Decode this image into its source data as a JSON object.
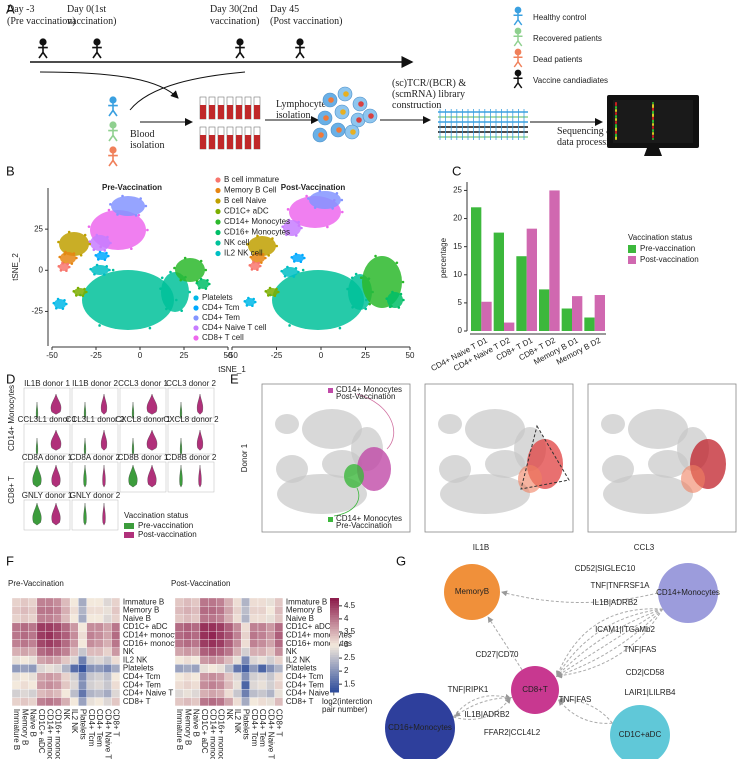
{
  "panel_labels": [
    "A",
    "B",
    "C",
    "D",
    "E",
    "F",
    "G"
  ],
  "panel_a": {
    "timeline": [
      {
        "lines": [
          "Day -3",
          "(Pre vaccination)"
        ]
      },
      {
        "lines": [
          "Day 0(1st",
          "vaccination)"
        ]
      },
      {
        "lines": [
          "Day 30(2nd",
          "vaccination)"
        ]
      },
      {
        "lines": [
          "Day 45",
          "(Post vaccination)"
        ]
      }
    ],
    "legend": [
      {
        "name": "Healthy control",
        "color": "#3aa0e0"
      },
      {
        "name": "Recovered patients",
        "color": "#8fd08f"
      },
      {
        "name": "Dead patients",
        "color": "#f0805a"
      },
      {
        "name": "Vaccine candiadiates",
        "color": "#111111"
      }
    ],
    "steps": [
      {
        "lines": [
          "Blood",
          "isolation"
        ]
      },
      {
        "lines": [
          "Lymphocyte",
          "isolation"
        ]
      },
      {
        "lines": [
          "(sc)TCR/(BCR) &",
          "(scmRNA) library",
          "construction"
        ]
      },
      {
        "lines": [
          "Sequencing &",
          "data processing"
        ]
      }
    ]
  },
  "panel_b": {
    "titles": [
      "Pre-Vaccination",
      "Post-Vaccination"
    ],
    "x_label": "tSNE_1",
    "y_label": "tSNE_2",
    "xlim": [
      -50,
      50
    ],
    "ylim": [
      -46,
      50
    ],
    "xticks": [
      -50,
      -25,
      0,
      25,
      50
    ],
    "yticks": [
      -25,
      0,
      25
    ],
    "clusters": [
      {
        "name": "B cell immature",
        "color": "#f8766d"
      },
      {
        "name": "Memory B Cell",
        "color": "#e68613"
      },
      {
        "name": "B cell Naive",
        "color": "#bfa000"
      },
      {
        "name": "CD1C+ aDC",
        "color": "#7cae00"
      },
      {
        "name": "CD14+ Monocytes",
        "color": "#2cb82c"
      },
      {
        "name": "CD16+ Monocytes",
        "color": "#00be67"
      },
      {
        "name": "NK cell",
        "color": "#00c19a"
      },
      {
        "name": "IL2 NK cell",
        "color": "#00bfc4"
      },
      {
        "name": "Platelets",
        "color": "#00b8e7"
      },
      {
        "name": "CD4+ Tcm",
        "color": "#00a9ff"
      },
      {
        "name": "CD4+ Tem",
        "color": "#8494ff"
      },
      {
        "name": "CD4+ Naive T cell",
        "color": "#c77cff"
      },
      {
        "name": "CD8+ T cell",
        "color": "#ed68ed"
      }
    ]
  },
  "chart_data": [
    {
      "type": "bar",
      "y_label": "percentage",
      "categories": [
        "CD4+ Naive T D1",
        "CD4+ Naive T D2",
        "CD8+ T D1",
        "CD8+ T D2",
        "Memory B D1",
        "Memory B D2"
      ],
      "legend_title": "Vaccination status",
      "series": [
        {
          "name": "Pre-vaccination",
          "color": "#3cb83c",
          "values": [
            22,
            17.5,
            13.3,
            7.4,
            4,
            2.4
          ]
        },
        {
          "name": "Post-vaccination",
          "color": "#d068b0",
          "values": [
            5.2,
            1.5,
            18.2,
            25,
            6.2,
            6.4
          ]
        }
      ],
      "ylim": [
        0,
        26.5
      ],
      "yticks": [
        0,
        5,
        10,
        15,
        20,
        25
      ]
    },
    {
      "type": "heatmap",
      "title": "Pre-Vaccination",
      "labels": [
        "Immature B",
        "Memory B",
        "Naive B",
        "CD1C+ aDC",
        "CD14+ monocytes",
        "CD16+ monocytes",
        "NK",
        "IL2 NK",
        "Platelets",
        "CD4+ Tcm",
        "CD4+ Tem",
        "CD4+ Naive T",
        "CD8+ T"
      ],
      "values": [
        [
          3.2,
          3.3,
          3.2,
          3.9,
          3.9,
          3.8,
          3.4,
          3.0,
          2.3,
          3.0,
          3.0,
          2.8,
          3.2
        ],
        [
          3.3,
          3.4,
          3.3,
          4.0,
          4.0,
          3.9,
          3.5,
          3.1,
          2.4,
          3.1,
          3.1,
          2.9,
          3.3
        ],
        [
          3.2,
          3.3,
          3.2,
          3.9,
          3.9,
          3.8,
          3.4,
          3.0,
          2.3,
          3.0,
          3.0,
          2.8,
          3.2
        ],
        [
          4.0,
          4.1,
          4.0,
          4.5,
          4.5,
          4.4,
          4.1,
          3.7,
          3.0,
          3.8,
          3.8,
          3.6,
          4.0
        ],
        [
          4.0,
          4.1,
          4.0,
          4.5,
          4.6,
          4.4,
          4.2,
          3.8,
          3.1,
          3.9,
          3.8,
          3.6,
          4.1
        ],
        [
          3.9,
          4.0,
          3.9,
          4.4,
          4.5,
          4.4,
          4.1,
          3.7,
          3.0,
          3.8,
          3.7,
          3.5,
          4.0
        ],
        [
          3.5,
          3.6,
          3.5,
          4.1,
          4.2,
          4.1,
          3.9,
          3.4,
          2.6,
          3.4,
          3.4,
          3.2,
          3.7
        ],
        [
          2.9,
          3.0,
          2.9,
          3.6,
          3.7,
          3.6,
          3.3,
          2.8,
          1.8,
          2.7,
          2.8,
          2.6,
          3.1
        ],
        [
          2.1,
          2.2,
          2.1,
          2.8,
          2.9,
          2.8,
          2.4,
          1.6,
          1.3,
          2.0,
          2.1,
          1.9,
          2.3
        ],
        [
          2.9,
          3.0,
          2.9,
          3.6,
          3.7,
          3.6,
          3.2,
          2.7,
          1.9,
          2.6,
          2.7,
          2.5,
          3.0
        ],
        [
          3.0,
          3.1,
          3.0,
          3.7,
          3.8,
          3.7,
          3.3,
          2.8,
          2.0,
          2.7,
          2.8,
          2.6,
          3.1
        ],
        [
          2.7,
          2.8,
          2.7,
          3.4,
          3.5,
          3.4,
          3.0,
          2.5,
          1.7,
          2.4,
          2.5,
          2.3,
          2.8
        ],
        [
          3.2,
          3.3,
          3.2,
          3.9,
          4.0,
          3.9,
          3.5,
          3.0,
          2.2,
          2.9,
          3.0,
          2.8,
          3.3
        ]
      ]
    },
    {
      "type": "heatmap",
      "title": "Post-Vaccination",
      "labels": [
        "Immature B",
        "Memory B",
        "Naive B",
        "CD1C+ aDC",
        "CD14+ monocytes",
        "CD16+ monocytes",
        "NK",
        "IL2 NK",
        "Platelets",
        "CD4+ Tcm",
        "CD4+ Tem",
        "CD4+ Naive T",
        "CD8+ T"
      ],
      "values": [
        [
          3.3,
          3.4,
          3.3,
          4.0,
          4.0,
          3.9,
          3.5,
          3.1,
          2.4,
          3.1,
          3.1,
          2.9,
          3.3
        ],
        [
          3.4,
          3.5,
          3.4,
          4.1,
          4.1,
          4.0,
          3.6,
          3.2,
          2.5,
          3.2,
          3.2,
          3.0,
          3.4
        ],
        [
          3.3,
          3.4,
          3.3,
          4.0,
          4.0,
          3.9,
          3.5,
          3.1,
          2.4,
          3.1,
          3.1,
          2.9,
          3.3
        ],
        [
          4.1,
          4.2,
          4.1,
          4.6,
          4.6,
          4.5,
          4.2,
          3.8,
          3.1,
          3.9,
          3.9,
          3.7,
          4.1
        ],
        [
          4.1,
          4.2,
          4.1,
          4.6,
          4.7,
          4.5,
          4.3,
          3.9,
          3.2,
          4.0,
          3.9,
          3.7,
          4.2
        ],
        [
          4.0,
          4.1,
          4.0,
          4.5,
          4.6,
          4.5,
          4.2,
          3.8,
          3.1,
          3.9,
          3.8,
          3.6,
          4.1
        ],
        [
          3.6,
          3.7,
          3.6,
          4.2,
          4.3,
          4.2,
          4.0,
          3.5,
          2.7,
          3.5,
          3.5,
          3.3,
          3.8
        ],
        [
          3.0,
          3.1,
          3.0,
          3.7,
          3.8,
          3.7,
          3.4,
          2.9,
          1.9,
          2.8,
          2.9,
          2.7,
          3.2
        ],
        [
          2.2,
          2.3,
          2.2,
          2.9,
          3.0,
          2.9,
          2.5,
          1.7,
          1.4,
          2.1,
          1.5,
          2.0,
          2.4
        ],
        [
          3.0,
          3.1,
          3.0,
          3.7,
          3.8,
          3.7,
          3.3,
          2.8,
          2.0,
          2.7,
          2.8,
          2.6,
          3.1
        ],
        [
          3.1,
          3.2,
          3.1,
          3.8,
          3.9,
          3.8,
          3.4,
          2.9,
          1.5,
          2.8,
          2.9,
          2.7,
          3.2
        ],
        [
          2.8,
          2.9,
          2.8,
          3.5,
          3.6,
          3.5,
          3.1,
          2.6,
          1.8,
          2.5,
          2.6,
          2.4,
          2.9
        ],
        [
          3.3,
          3.4,
          3.3,
          4.0,
          4.1,
          4.0,
          3.6,
          3.1,
          2.3,
          3.0,
          3.1,
          2.9,
          3.4
        ]
      ],
      "colorbar_label": [
        "log2(interction",
        "pair number)"
      ],
      "zlim": [
        1.2,
        4.8
      ],
      "zticks": [
        1.5,
        2,
        2.5,
        3,
        3.5,
        4,
        4.5
      ],
      "colors": [
        "#2b4a9a",
        "#f3e9dc",
        "#8b1a4a"
      ]
    }
  ],
  "panel_d": {
    "groups": [
      "CD14+ Monocytes",
      "CD8+ T"
    ],
    "titles": [
      "IL1B donor 1",
      "IL1B donor 2",
      "CCL3 donor 1",
      "CCL3 donor 2",
      "CCL3L1 donor 1",
      "CCL3L1 donor 2",
      "CXCL8 donor 1",
      "CXCL8 donor 2",
      "CD8A donor 1",
      "CD8A donor 2",
      "CD8B donor 1",
      "CD8B donor 2",
      "GNLY donor 1",
      "GNLY donor 2"
    ],
    "legend_title": "Vaccination status",
    "legend": [
      {
        "name": "Pre-vaccination",
        "color": "#3c9c3c"
      },
      {
        "name": "Post-vaccination",
        "color": "#b0307a"
      }
    ]
  },
  "panel_e": {
    "row_label": "Donor 1",
    "annotations": [
      [
        "CD14+ Monocytes",
        "Post-Vaccination"
      ],
      [
        "CD14+ Monocytes",
        "Pre-Vaccination"
      ]
    ],
    "panel_titles": [
      "IL1B",
      "CCL3"
    ]
  },
  "panel_g": {
    "nodes": [
      {
        "name": "MemoryB",
        "color": "#f0903a"
      },
      {
        "name": "CD14+Monocytes",
        "color": "#9c9cdc"
      },
      {
        "name": "CD8+T",
        "color": "#c83890"
      },
      {
        "name": "CD16+Monocytes",
        "color": "#2e3f9c"
      },
      {
        "name": "CD1C+aDC",
        "color": "#60c8d8"
      }
    ],
    "edges": [
      "CD52|SIGLEC10",
      "TNF|TNFRSF1A",
      "IL1B|ADRB2",
      "ICAM1|ITGaMb2",
      "TNF|FAS",
      "CD2|CD58",
      "LAIR1|LILRB4",
      "CD27|CD70",
      "TNF|RIPK1",
      "IL1B|ADRB2",
      "FFAR2|CCL4L2",
      "TNF|FAS"
    ]
  }
}
